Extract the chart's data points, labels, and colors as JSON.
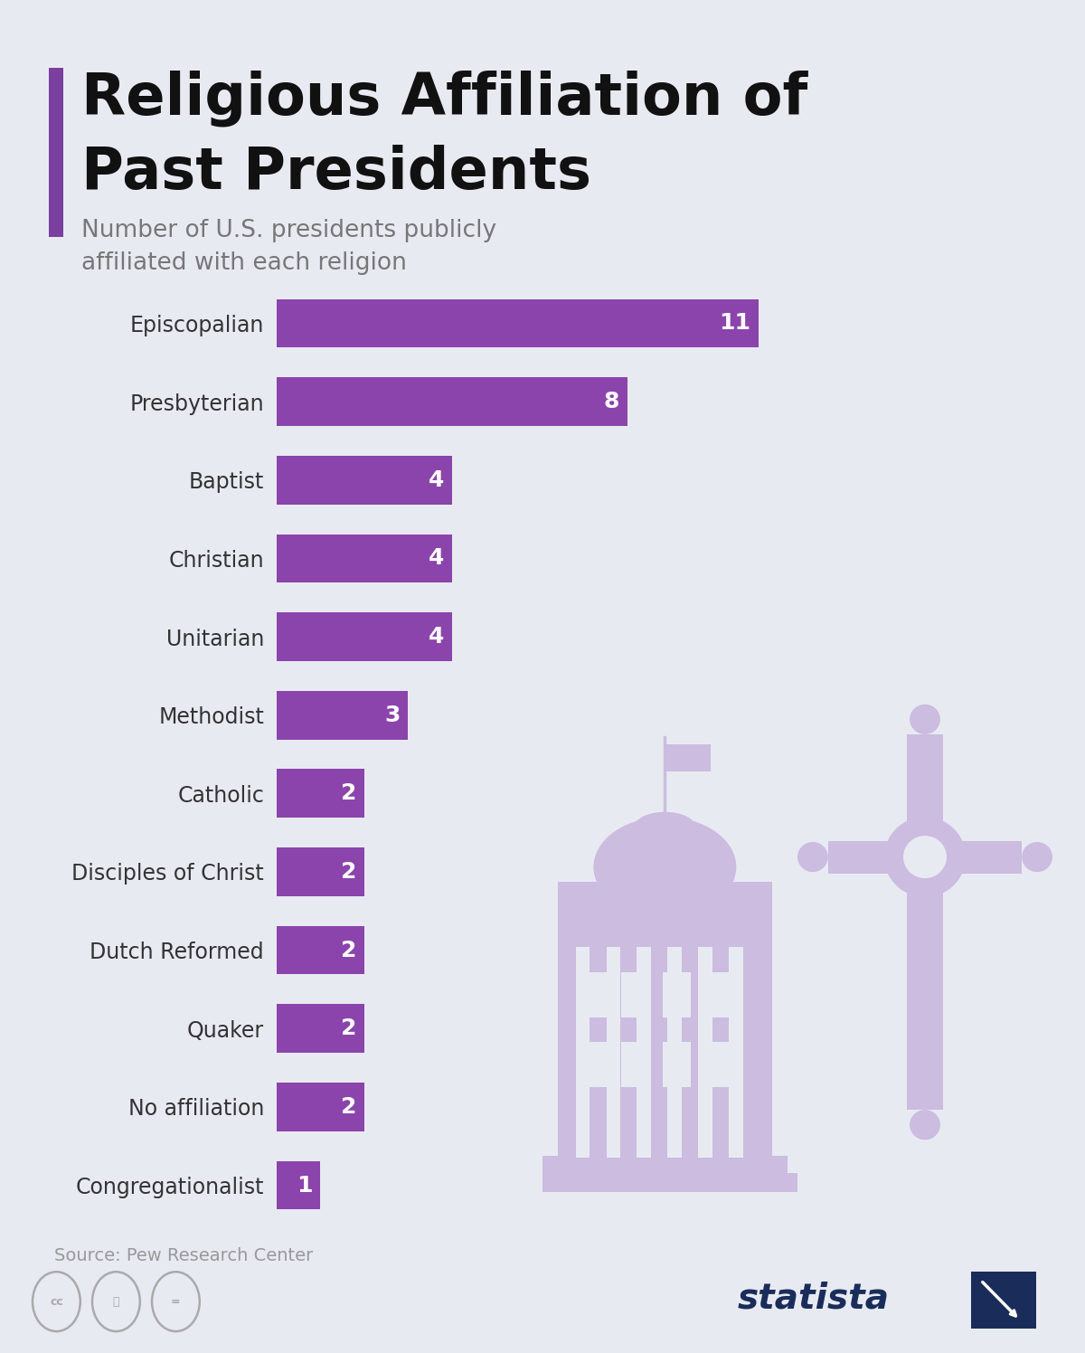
{
  "title_line1": "Religious Affiliation of",
  "title_line2": "Past Presidents",
  "subtitle_line1": "Number of U.S. presidents publicly",
  "subtitle_line2": "affiliated with each religion",
  "categories": [
    "Episcopalian",
    "Presbyterian",
    "Baptist",
    "Christian",
    "Unitarian",
    "Methodist",
    "Catholic",
    "Disciples of Christ",
    "Dutch Reformed",
    "Quaker",
    "No affiliation",
    "Congregationalist"
  ],
  "values": [
    11,
    8,
    4,
    4,
    4,
    3,
    2,
    2,
    2,
    2,
    2,
    1
  ],
  "bar_color": "#8B44AC",
  "value_color": "#ffffff",
  "background_color": "#E8EAF2",
  "title_color": "#111111",
  "subtitle_color": "#777777",
  "source_color": "#999999",
  "label_color": "#333333",
  "icon_color": "#CBBCE0",
  "accent_color": "#7B3FA0",
  "statista_color": "#1a2d5a"
}
